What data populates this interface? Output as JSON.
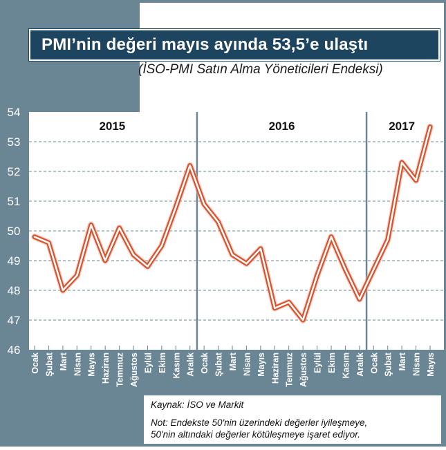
{
  "header": {
    "title": "PMI’nin değeri mayıs ayında 53,5’e ulaştı",
    "subtitle": "(İSO-PMI Satın Alma Yöneticileri Endeksi)"
  },
  "footer": {
    "source": "Kaynak: İSO ve Markit",
    "note_line1": "Not: Endekste 50'nin üzerindeki değerler iyileşmeye,",
    "note_line2": "50'nin altındaki değerler kötüleşmeye işaret ediyor."
  },
  "colors": {
    "frame": "#6a8593",
    "title_bg": "#1e4560",
    "line_outer": "#d9542e",
    "line_inner": "#ffffff",
    "year_divider": "#6a8593"
  },
  "chart_data": {
    "type": "line",
    "title": "PMI’nin değeri mayıs ayında 53,5’e ulaştı",
    "subtitle": "(İSO-PMI Satın Alma Yöneticileri Endeksi)",
    "xlabel": "",
    "ylabel": "",
    "ylim": [
      46,
      54
    ],
    "yticks": [
      46,
      47,
      48,
      49,
      50,
      51,
      52,
      53,
      54
    ],
    "grid": true,
    "years": [
      {
        "label": "2015",
        "start": 0,
        "end": 11
      },
      {
        "label": "2016",
        "start": 12,
        "end": 23
      },
      {
        "label": "2017",
        "start": 24,
        "end": 28
      }
    ],
    "categories": [
      "Ocak",
      "Şubat",
      "Mart",
      "Nisan",
      "Mayıs",
      "Haziran",
      "Temmuz",
      "Ağustos",
      "Eylül",
      "Ekim",
      "Kasım",
      "Aralık",
      "Ocak",
      "Şubat",
      "Mart",
      "Nisan",
      "Mayıs",
      "Haziran",
      "Temmuz",
      "Ağustos",
      "Eylül",
      "Ekim",
      "Kasım",
      "Aralık",
      "Ocak",
      "Şubat",
      "Mart",
      "Nisan",
      "Mayıs"
    ],
    "values": [
      49.8,
      49.6,
      48.0,
      48.5,
      50.2,
      49.0,
      50.1,
      49.2,
      48.8,
      49.5,
      50.8,
      52.2,
      50.9,
      50.3,
      49.2,
      48.9,
      49.4,
      47.4,
      47.6,
      47.0,
      48.5,
      49.8,
      48.7,
      47.7,
      48.7,
      49.7,
      52.3,
      51.7,
      53.5
    ]
  }
}
